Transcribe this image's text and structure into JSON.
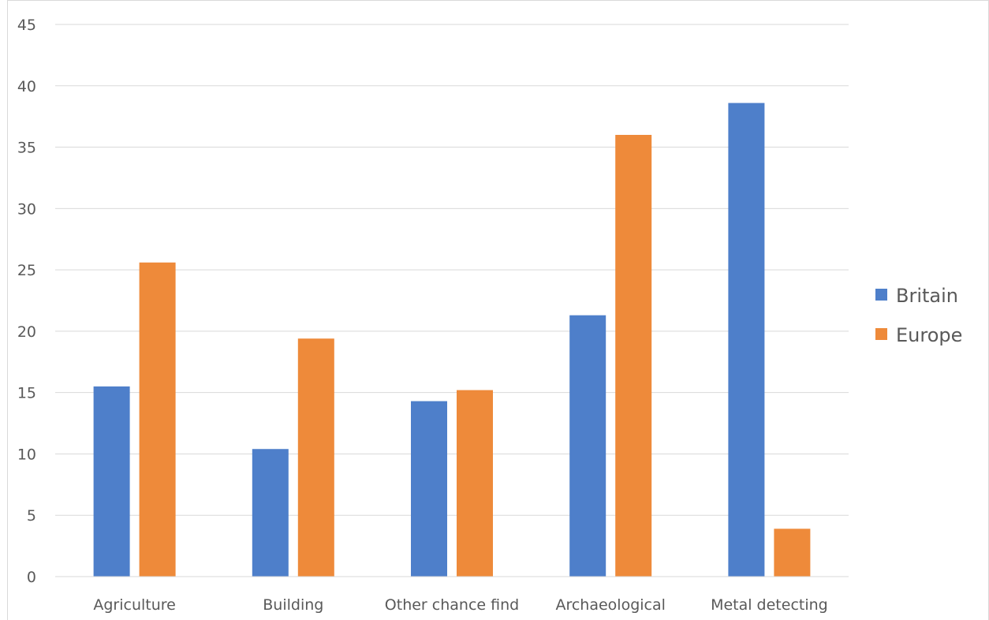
{
  "chart_data": {
    "type": "bar",
    "categories": [
      "Agriculture",
      "Building",
      "Other chance find",
      "Archaeological",
      "Metal detecting"
    ],
    "series": [
      {
        "name": "Britain",
        "color": "#4e7fca",
        "values": [
          15.5,
          10.4,
          14.3,
          21.3,
          38.6
        ]
      },
      {
        "name": "Europe",
        "color": "#ee8a3a",
        "values": [
          25.6,
          19.4,
          15.2,
          36.0,
          3.9
        ]
      }
    ],
    "title": "",
    "xlabel": "",
    "ylabel": "",
    "ylim": [
      0,
      45
    ],
    "yticks": [
      "0",
      "5",
      "10",
      "15",
      "20",
      "25",
      "30",
      "35",
      "40",
      "45"
    ],
    "grid": true,
    "legend_position": "right"
  }
}
